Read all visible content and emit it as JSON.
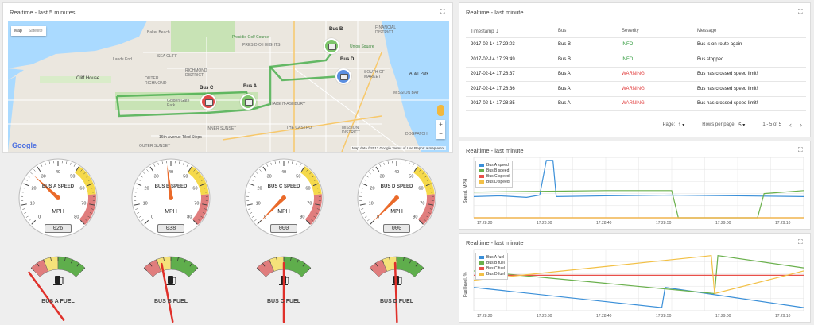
{
  "map_panel": {
    "title": "Realtime - last 5 minutes",
    "map_type_buttons": [
      "Map",
      "Satellite"
    ],
    "places": [
      {
        "name": "Lands End"
      },
      {
        "name": "Cliff House"
      },
      {
        "name": "SEA CLIFF"
      },
      {
        "name": "RICHMOND DISTRICT"
      },
      {
        "name": "OUTER RICHMOND"
      },
      {
        "name": "Golden Gate Park"
      },
      {
        "name": "INNER SUNSET"
      },
      {
        "name": "16th Avenue Tiled Steps"
      },
      {
        "name": "OUTER SUNSET"
      },
      {
        "name": "HAIGHT-ASHBURY"
      },
      {
        "name": "THE CASTRO"
      },
      {
        "name": "MISSION DISTRICT"
      },
      {
        "name": "SOUTH OF MARKET"
      },
      {
        "name": "MISSION BAY"
      },
      {
        "name": "DOGPATCH"
      },
      {
        "name": "Presidio Golf Course"
      },
      {
        "name": "Baker Beach"
      },
      {
        "name": "PRESIDIO HEIGHTS"
      },
      {
        "name": "Union Square"
      },
      {
        "name": "AT&T Park"
      },
      {
        "name": "FINANCIAL DISTRICT"
      }
    ],
    "bus_labels": [
      "Bus A",
      "Bus B",
      "Bus C",
      "Bus D"
    ],
    "google_logo": "Google",
    "attribution": "Map data ©2017 Google   Terms of Use   Report a map error",
    "zoom_in": "+",
    "zoom_out": "−"
  },
  "table_panel": {
    "title": "Realtime - last minute",
    "columns": [
      "Timestamp",
      "Bus",
      "Severity",
      "Message"
    ],
    "rows": [
      {
        "timestamp": "2017-02-14 17:29:03",
        "bus": "Bus B",
        "severity": "INFO",
        "message": "Bus is on route again"
      },
      {
        "timestamp": "2017-02-14 17:28:49",
        "bus": "Bus B",
        "severity": "INFO",
        "message": "Bus stopped"
      },
      {
        "timestamp": "2017-02-14 17:28:37",
        "bus": "Bus A",
        "severity": "WARNING",
        "message": "Bus has crossed speed limit!"
      },
      {
        "timestamp": "2017-02-14 17:28:36",
        "bus": "Bus A",
        "severity": "WARNING",
        "message": "Bus has crossed speed limit!"
      },
      {
        "timestamp": "2017-02-14 17:28:35",
        "bus": "Bus A",
        "severity": "WARNING",
        "message": "Bus has crossed speed limit!"
      }
    ],
    "pager": {
      "page_label": "Page:",
      "page_value": "1",
      "rows_label": "Rows per page:",
      "rows_value": "5",
      "range": "1 - 5 of 5"
    }
  },
  "gauges": {
    "ticks": [
      "0",
      "10",
      "20",
      "30",
      "40",
      "50",
      "60",
      "70",
      "80"
    ],
    "unit": "MPH",
    "speed": [
      {
        "name": "BUS A SPEED",
        "value": 26,
        "display": "026"
      },
      {
        "name": "BUS B SPEED",
        "value": 38,
        "display": "038"
      },
      {
        "name": "BUS C SPEED",
        "value": 0,
        "display": "000"
      },
      {
        "name": "BUS D SPEED",
        "value": 0,
        "display": "000"
      }
    ],
    "fuel": [
      {
        "name": "BUS A FUEL",
        "level": 0.1
      },
      {
        "name": "BUS B FUEL",
        "level": 0.38
      },
      {
        "name": "BUS C FUEL",
        "level": 0.5
      },
      {
        "name": "BUS D FUEL",
        "level": 0.48
      }
    ]
  },
  "speed_panel": {
    "title": "Realtime - last minute"
  },
  "fuel_panel": {
    "title": "Realtime - last minute"
  },
  "chart_data": [
    {
      "type": "line",
      "ylabel": "Speed, MPH",
      "x": [
        "17:28:20",
        "17:28:30",
        "17:28:40",
        "17:28:50",
        "17:29:00",
        "17:29:10"
      ],
      "ylim": [
        0,
        80
      ],
      "series": [
        {
          "name": "Bus A speed",
          "color": "#3a8fd8",
          "points": [
            [
              0,
              28
            ],
            [
              8,
              29
            ],
            [
              16,
              27
            ],
            [
              20,
              30
            ],
            [
              22,
              76
            ],
            [
              24,
              76
            ],
            [
              25,
              28
            ],
            [
              40,
              29
            ],
            [
              60,
              30
            ],
            [
              80,
              29
            ],
            [
              100,
              28
            ]
          ]
        },
        {
          "name": "Bus B speed",
          "color": "#6ab04c",
          "points": [
            [
              0,
              34
            ],
            [
              20,
              35
            ],
            [
              40,
              36
            ],
            [
              60,
              36
            ],
            [
              62,
              0
            ],
            [
              86,
              0
            ],
            [
              88,
              32
            ],
            [
              100,
              36
            ]
          ]
        },
        {
          "name": "Bus C speed",
          "color": "#e8504a",
          "points": [
            [
              0,
              0
            ],
            [
              100,
              0
            ]
          ]
        },
        {
          "name": "Bus D speed",
          "color": "#f2c046",
          "points": [
            [
              0,
              0
            ],
            [
              100,
              0
            ]
          ]
        }
      ]
    },
    {
      "type": "line",
      "ylabel": "Fuel level, %",
      "x": [
        "17:28:20",
        "17:28:30",
        "17:28:40",
        "17:28:50",
        "17:29:00",
        "17:29:10"
      ],
      "ylim": [
        0,
        100
      ],
      "series": [
        {
          "name": "Bus A fuel",
          "color": "#3a8fd8",
          "points": [
            [
              0,
              38
            ],
            [
              57,
              5
            ],
            [
              58,
              38
            ],
            [
              100,
              5
            ]
          ]
        },
        {
          "name": "Bus B fuel",
          "color": "#6ab04c",
          "points": [
            [
              0,
              65
            ],
            [
              73,
              28
            ],
            [
              74,
              90
            ],
            [
              100,
              70
            ]
          ]
        },
        {
          "name": "Bus C fuel",
          "color": "#e8504a",
          "points": [
            [
              0,
              58
            ],
            [
              100,
              58
            ]
          ]
        },
        {
          "name": "Bus D fuel",
          "color": "#f2c046",
          "points": [
            [
              0,
              50
            ],
            [
              72,
              90
            ],
            [
              73,
              28
            ],
            [
              100,
              65
            ]
          ]
        }
      ]
    }
  ]
}
